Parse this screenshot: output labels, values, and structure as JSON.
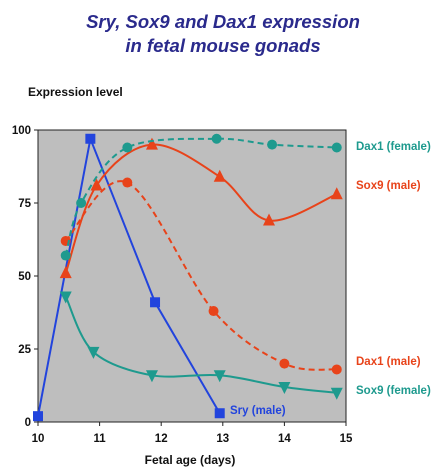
{
  "chart_data": {
    "type": "line",
    "title_line1": "Sry, Sox9 and Dax1 expression",
    "title_line2": "in fetal mouse gonads",
    "ylabel": "Expression level",
    "xlabel": "Fetal age (days)",
    "xlim": [
      10,
      15
    ],
    "ylim": [
      0,
      100
    ],
    "x_ticks": [
      "10",
      "11",
      "12",
      "13",
      "14",
      "15"
    ],
    "y_ticks": [
      "0",
      "25",
      "50",
      "75",
      "100"
    ],
    "plot_background": "#bebebe",
    "series": [
      {
        "name": "Sry (male)",
        "color": "#2244dd",
        "line_style": "solid",
        "marker": "square",
        "x": [
          10.0,
          10.85,
          11.9,
          12.95
        ],
        "y": [
          2,
          97,
          41,
          3
        ]
      },
      {
        "name": "Sox9 (male)",
        "color": "#e8431a",
        "line_style": "solid",
        "marker": "triangle-up",
        "x": [
          10.45,
          10.95,
          11.85,
          12.95,
          13.75,
          14.85
        ],
        "y": [
          51,
          81,
          95,
          84,
          69,
          78
        ]
      },
      {
        "name": "Dax1 (male)",
        "color": "#e8431a",
        "line_style": "dashed",
        "marker": "circle",
        "x": [
          10.45,
          11.45,
          12.85,
          14.0,
          14.85
        ],
        "y": [
          62,
          82,
          38,
          20,
          18
        ]
      },
      {
        "name": "Dax1 (female)",
        "color": "#1e9a8e",
        "line_style": "dashed",
        "marker": "circle",
        "x": [
          10.45,
          10.7,
          11.45,
          12.9,
          13.8,
          14.85
        ],
        "y": [
          57,
          75,
          94,
          97,
          95,
          94
        ]
      },
      {
        "name": "Sox9 (female)",
        "color": "#1e9a8e",
        "line_style": "solid",
        "marker": "triangle-down",
        "x": [
          10.45,
          10.9,
          11.85,
          12.95,
          14.0,
          14.85
        ],
        "y": [
          43,
          24,
          16,
          16,
          12,
          10
        ]
      }
    ]
  }
}
